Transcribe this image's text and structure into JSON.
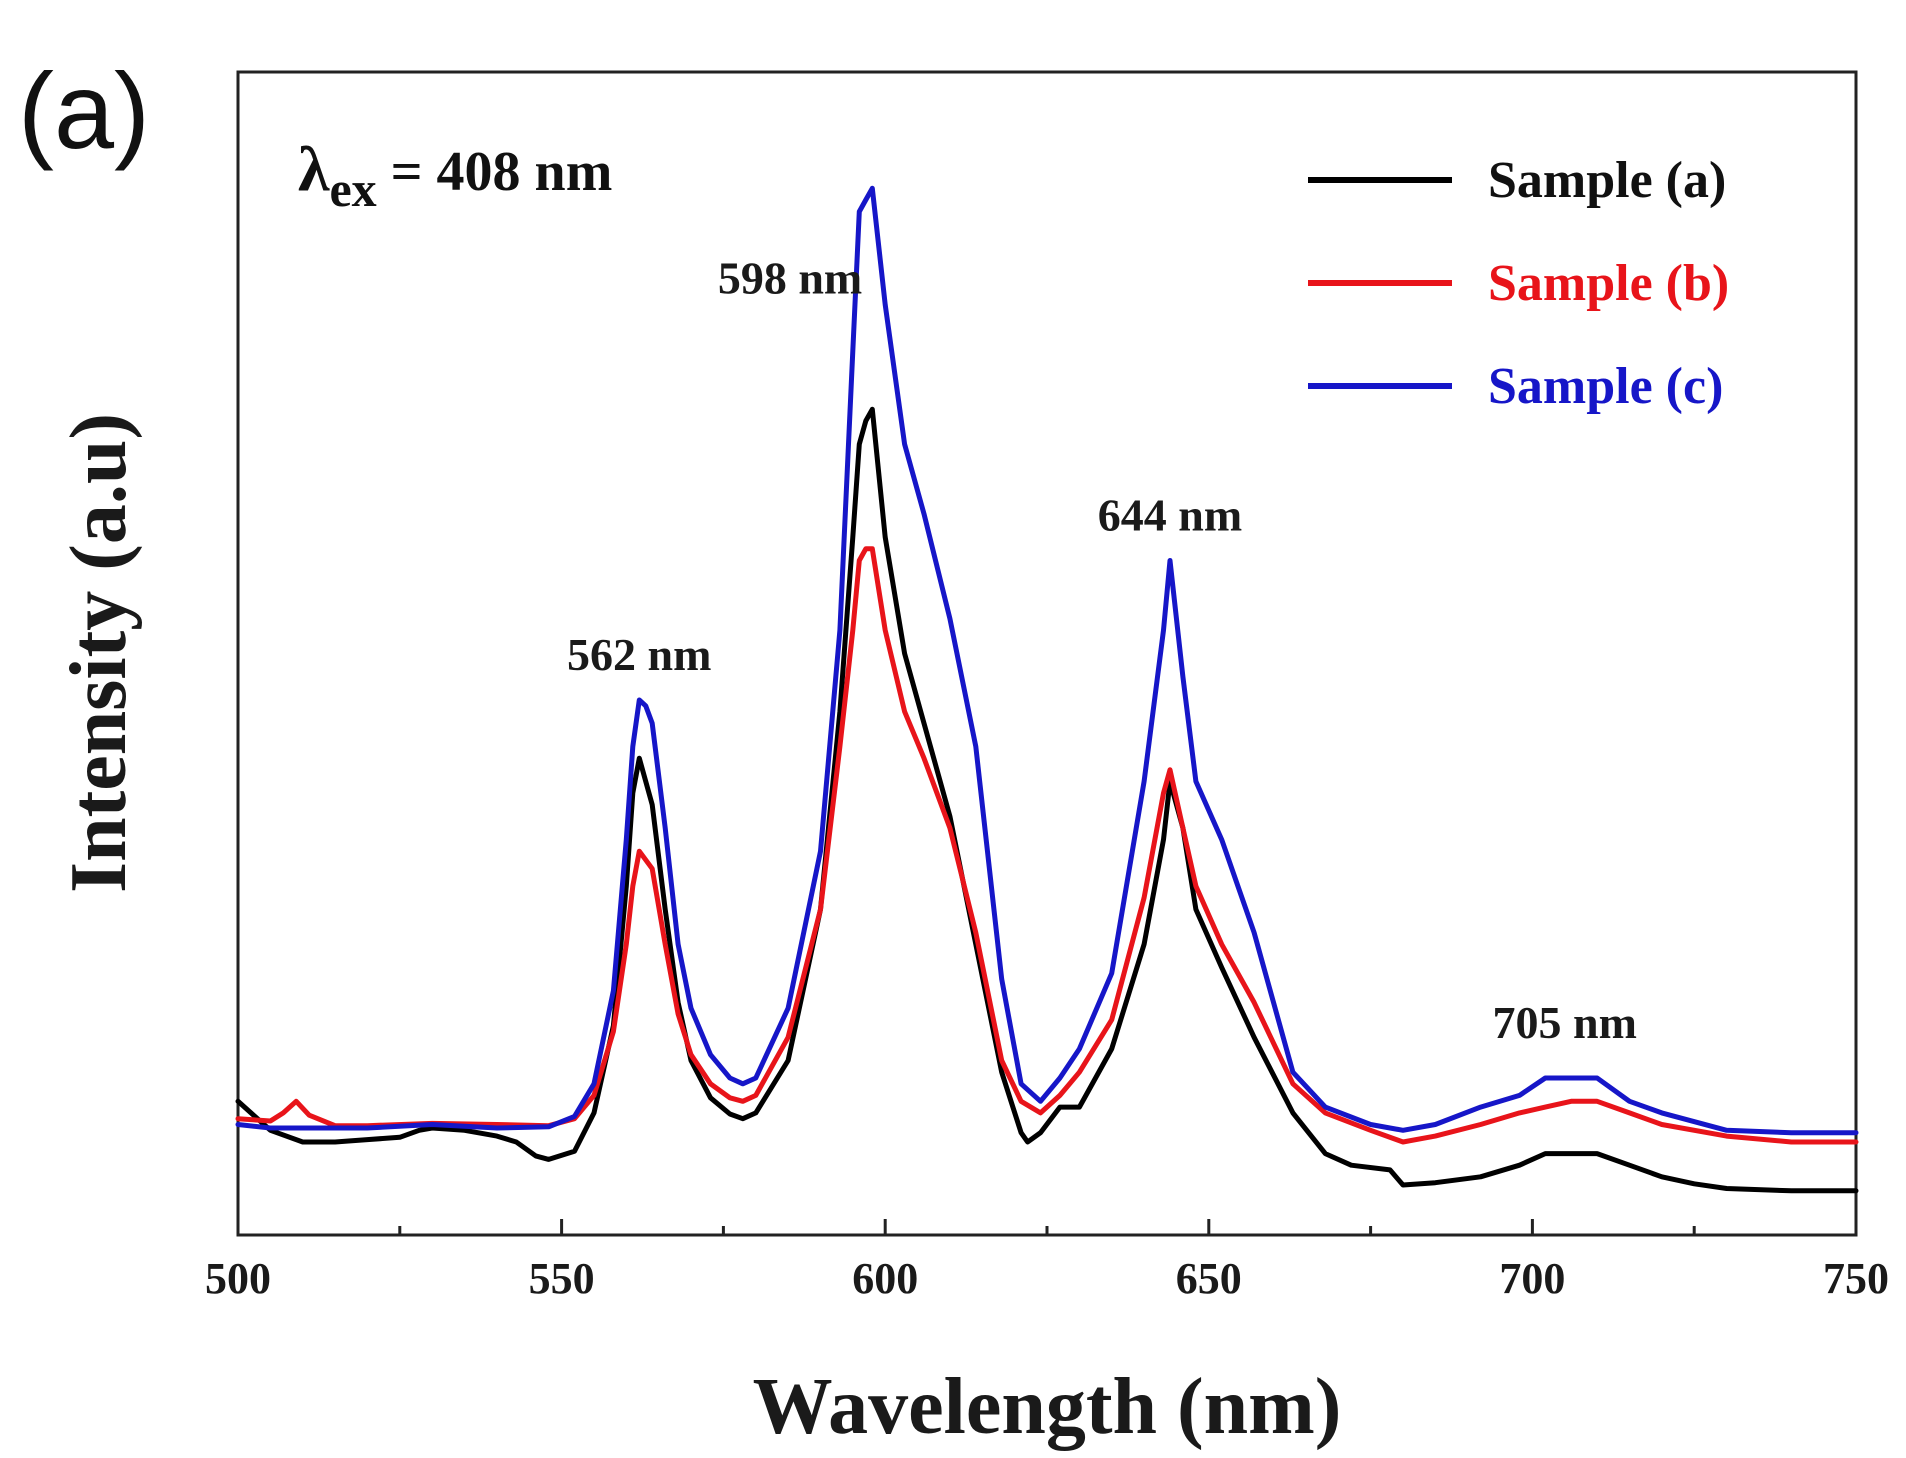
{
  "panel_label": "(a)",
  "excitation": {
    "symbol": "λ",
    "subscript": "ex",
    "value": " = 408 nm"
  },
  "chart_data": {
    "type": "line",
    "title": "",
    "xlabel": "Wavelength (nm)",
    "ylabel": "Intensity (a.u)",
    "xlim": [
      500,
      750
    ],
    "ylim": [
      0,
      100
    ],
    "xticks": [
      "500",
      "550",
      "600",
      "650",
      "700",
      "750"
    ],
    "grid": false,
    "legend_position": "top-right",
    "annotations": [
      {
        "text": "562 nm",
        "x": 562
      },
      {
        "text": "598 nm",
        "x": 598
      },
      {
        "text": "644 nm",
        "x": 644
      },
      {
        "text": "705 nm",
        "x": 705
      }
    ],
    "series": [
      {
        "name": "Sample (a)",
        "color": "#000000",
        "points": [
          [
            500,
            11.5
          ],
          [
            505,
            9.0
          ],
          [
            510,
            8.0
          ],
          [
            515,
            8.0
          ],
          [
            520,
            8.2
          ],
          [
            525,
            8.4
          ],
          [
            528,
            9.0
          ],
          [
            530,
            9.2
          ],
          [
            535,
            9.0
          ],
          [
            540,
            8.5
          ],
          [
            543,
            8.0
          ],
          [
            546,
            6.8
          ],
          [
            548,
            6.5
          ],
          [
            552,
            7.2
          ],
          [
            555,
            10.5
          ],
          [
            558,
            18.0
          ],
          [
            560,
            30.0
          ],
          [
            561,
            38.0
          ],
          [
            562,
            41.0
          ],
          [
            564,
            37.0
          ],
          [
            566,
            28.0
          ],
          [
            568,
            20.0
          ],
          [
            570,
            15.0
          ],
          [
            573,
            11.8
          ],
          [
            576,
            10.4
          ],
          [
            578,
            10.0
          ],
          [
            580,
            10.5
          ],
          [
            585,
            15.0
          ],
          [
            590,
            28.0
          ],
          [
            593,
            45.0
          ],
          [
            595,
            60.0
          ],
          [
            596,
            68.0
          ],
          [
            597,
            70.0
          ],
          [
            598,
            71.0
          ],
          [
            600,
            60.0
          ],
          [
            603,
            50.0
          ],
          [
            606,
            44.0
          ],
          [
            610,
            36.0
          ],
          [
            614,
            25.0
          ],
          [
            618,
            14.0
          ],
          [
            621,
            8.8
          ],
          [
            622,
            8.0
          ],
          [
            624,
            8.8
          ],
          [
            627,
            11.0
          ],
          [
            630,
            11.0
          ],
          [
            635,
            16.0
          ],
          [
            640,
            25.0
          ],
          [
            643,
            34.0
          ],
          [
            644,
            39.0
          ],
          [
            646,
            35.0
          ],
          [
            648,
            28.0
          ],
          [
            652,
            23.0
          ],
          [
            657,
            17.0
          ],
          [
            663,
            10.5
          ],
          [
            668,
            7.0
          ],
          [
            672,
            6.0
          ],
          [
            678,
            5.6
          ],
          [
            680,
            4.3
          ],
          [
            685,
            4.5
          ],
          [
            692,
            5.0
          ],
          [
            698,
            6.0
          ],
          [
            702,
            7.0
          ],
          [
            706,
            7.0
          ],
          [
            710,
            7.0
          ],
          [
            715,
            6.0
          ],
          [
            720,
            5.0
          ],
          [
            725,
            4.4
          ],
          [
            730,
            4.0
          ],
          [
            740,
            3.8
          ],
          [
            750,
            3.8
          ]
        ]
      },
      {
        "name": "Sample (b)",
        "color": "#e8141a",
        "points": [
          [
            500,
            10.0
          ],
          [
            505,
            9.8
          ],
          [
            507,
            10.5
          ],
          [
            509,
            11.5
          ],
          [
            511,
            10.3
          ],
          [
            515,
            9.4
          ],
          [
            520,
            9.4
          ],
          [
            530,
            9.6
          ],
          [
            540,
            9.5
          ],
          [
            548,
            9.4
          ],
          [
            552,
            10.0
          ],
          [
            555,
            12.0
          ],
          [
            558,
            17.5
          ],
          [
            560,
            25.0
          ],
          [
            561,
            30.0
          ],
          [
            562,
            33.0
          ],
          [
            564,
            31.5
          ],
          [
            566,
            25.0
          ],
          [
            568,
            19.0
          ],
          [
            570,
            15.5
          ],
          [
            573,
            13.0
          ],
          [
            576,
            11.8
          ],
          [
            578,
            11.5
          ],
          [
            580,
            12.0
          ],
          [
            585,
            17.0
          ],
          [
            590,
            28.0
          ],
          [
            593,
            42.0
          ],
          [
            595,
            52.0
          ],
          [
            596,
            58.0
          ],
          [
            597,
            59.0
          ],
          [
            598,
            59.0
          ],
          [
            600,
            52.0
          ],
          [
            603,
            45.0
          ],
          [
            606,
            41.0
          ],
          [
            610,
            35.0
          ],
          [
            614,
            26.0
          ],
          [
            618,
            15.0
          ],
          [
            621,
            11.5
          ],
          [
            624,
            10.5
          ],
          [
            627,
            12.0
          ],
          [
            630,
            14.0
          ],
          [
            635,
            18.5
          ],
          [
            640,
            29.0
          ],
          [
            643,
            38.0
          ],
          [
            644,
            40.0
          ],
          [
            646,
            35.0
          ],
          [
            648,
            30.0
          ],
          [
            652,
            25.0
          ],
          [
            657,
            20.0
          ],
          [
            663,
            13.0
          ],
          [
            668,
            10.5
          ],
          [
            675,
            9.0
          ],
          [
            680,
            8.0
          ],
          [
            685,
            8.5
          ],
          [
            692,
            9.5
          ],
          [
            698,
            10.5
          ],
          [
            702,
            11.0
          ],
          [
            706,
            11.5
          ],
          [
            710,
            11.5
          ],
          [
            715,
            10.5
          ],
          [
            720,
            9.5
          ],
          [
            730,
            8.5
          ],
          [
            740,
            8.0
          ],
          [
            750,
            8.0
          ]
        ]
      },
      {
        "name": "Sample (c)",
        "color": "#1616c8",
        "points": [
          [
            500,
            9.5
          ],
          [
            505,
            9.2
          ],
          [
            510,
            9.2
          ],
          [
            520,
            9.2
          ],
          [
            530,
            9.5
          ],
          [
            540,
            9.2
          ],
          [
            548,
            9.3
          ],
          [
            552,
            10.2
          ],
          [
            555,
            13.0
          ],
          [
            558,
            21.0
          ],
          [
            560,
            34.0
          ],
          [
            561,
            42.0
          ],
          [
            562,
            46.0
          ],
          [
            563,
            45.5
          ],
          [
            564,
            44.0
          ],
          [
            566,
            35.0
          ],
          [
            568,
            25.0
          ],
          [
            570,
            19.5
          ],
          [
            573,
            15.5
          ],
          [
            576,
            13.5
          ],
          [
            578,
            13.0
          ],
          [
            580,
            13.5
          ],
          [
            585,
            19.5
          ],
          [
            590,
            33.0
          ],
          [
            593,
            52.0
          ],
          [
            595,
            76.0
          ],
          [
            596,
            88.0
          ],
          [
            597,
            89.0
          ],
          [
            598,
            90.0
          ],
          [
            600,
            80.0
          ],
          [
            603,
            68.0
          ],
          [
            606,
            62.0
          ],
          [
            610,
            53.0
          ],
          [
            614,
            42.0
          ],
          [
            618,
            22.0
          ],
          [
            621,
            13.0
          ],
          [
            624,
            11.5
          ],
          [
            627,
            13.5
          ],
          [
            630,
            16.0
          ],
          [
            635,
            22.5
          ],
          [
            640,
            39.0
          ],
          [
            643,
            52.0
          ],
          [
            644,
            58.0
          ],
          [
            646,
            48.0
          ],
          [
            648,
            39.0
          ],
          [
            652,
            34.0
          ],
          [
            657,
            26.0
          ],
          [
            663,
            14.0
          ],
          [
            668,
            11.0
          ],
          [
            675,
            9.5
          ],
          [
            680,
            9.0
          ],
          [
            685,
            9.5
          ],
          [
            692,
            11.0
          ],
          [
            698,
            12.0
          ],
          [
            702,
            13.5
          ],
          [
            706,
            13.5
          ],
          [
            710,
            13.5
          ],
          [
            715,
            11.5
          ],
          [
            720,
            10.5
          ],
          [
            730,
            9.0
          ],
          [
            740,
            8.8
          ],
          [
            750,
            8.8
          ]
        ]
      }
    ]
  }
}
